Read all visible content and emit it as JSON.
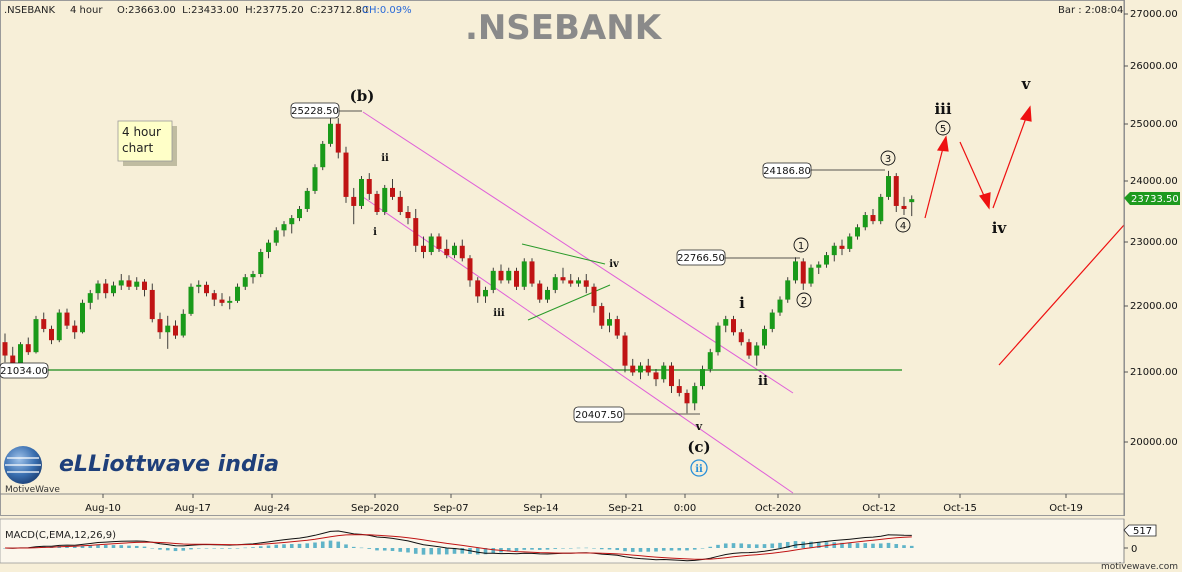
{
  "header": {
    "symbol": ".NSEBANK",
    "timeframe": "4 hour",
    "ohlc": "O:23663.00  L:23433.00  H:23775.20  C:23712.80",
    "change": "CH:0.09%",
    "bar_clock": "Bar : 2:08:04"
  },
  "title": ".NSEBANK",
  "note_line1": "4 hour",
  "note_line2": "chart",
  "brand": {
    "logo_text": "eLLiottwave india",
    "logo_caption": "MotiveWave",
    "watermark": "motivewave.com"
  },
  "colors": {
    "background": "#f7efd8",
    "up_candle": "#1a9a1a",
    "down_candle": "#c01414",
    "channel": "#e060d8",
    "triangle": "#2a9a2a",
    "support": "#1a8a1a",
    "projection": "#ee1111",
    "current_price_box": "#1e9a1e",
    "macd_histogram": "#5fb4c8",
    "macd_line": "#111111",
    "signal_line": "#c01414"
  },
  "chart_data": {
    "type": "candlestick",
    "y_axis": {
      "scale": "log",
      "range": [
        19400,
        27200
      ],
      "ticks": [
        "20000.00",
        "21000.00",
        "22000.00",
        "23000.00",
        "24000.00",
        "25000.00",
        "26000.00",
        "27000.00"
      ]
    },
    "x_axis": {
      "ticks": [
        "Aug-10",
        "Aug-17",
        "Aug-24",
        "Sep-2020",
        "Sep-07",
        "Sep-14",
        "Sep-21",
        "0:00",
        "Oct-2020",
        "Oct-12",
        "Oct-15",
        "Oct-19"
      ]
    },
    "grid": false,
    "price_labels": [
      "25228.50",
      "24186.80",
      "22766.50",
      "21034.00",
      "20407.50"
    ],
    "current_price": "23733.50",
    "candles": [
      {
        "o": 21450,
        "h": 21580,
        "l": 21150,
        "c": 21250
      },
      {
        "o": 21250,
        "h": 21380,
        "l": 21020,
        "c": 21120
      },
      {
        "o": 21120,
        "h": 21450,
        "l": 21080,
        "c": 21420
      },
      {
        "o": 21420,
        "h": 21520,
        "l": 21260,
        "c": 21300
      },
      {
        "o": 21300,
        "h": 21850,
        "l": 21280,
        "c": 21800
      },
      {
        "o": 21800,
        "h": 21900,
        "l": 21600,
        "c": 21650
      },
      {
        "o": 21650,
        "h": 21700,
        "l": 21420,
        "c": 21480
      },
      {
        "o": 21480,
        "h": 21950,
        "l": 21450,
        "c": 21900
      },
      {
        "o": 21900,
        "h": 21960,
        "l": 21650,
        "c": 21700
      },
      {
        "o": 21700,
        "h": 21780,
        "l": 21500,
        "c": 21600
      },
      {
        "o": 21600,
        "h": 22100,
        "l": 21580,
        "c": 22050
      },
      {
        "o": 22050,
        "h": 22250,
        "l": 21950,
        "c": 22200
      },
      {
        "o": 22200,
        "h": 22400,
        "l": 22100,
        "c": 22350
      },
      {
        "o": 22350,
        "h": 22420,
        "l": 22120,
        "c": 22200
      },
      {
        "o": 22200,
        "h": 22380,
        "l": 22150,
        "c": 22320
      },
      {
        "o": 22320,
        "h": 22500,
        "l": 22250,
        "c": 22400
      },
      {
        "o": 22400,
        "h": 22480,
        "l": 22250,
        "c": 22300
      },
      {
        "o": 22300,
        "h": 22450,
        "l": 22250,
        "c": 22380
      },
      {
        "o": 22380,
        "h": 22420,
        "l": 22150,
        "c": 22250
      },
      {
        "o": 22250,
        "h": 22350,
        "l": 21750,
        "c": 21800
      },
      {
        "o": 21800,
        "h": 21900,
        "l": 21500,
        "c": 21600
      },
      {
        "o": 21600,
        "h": 21850,
        "l": 21350,
        "c": 21700
      },
      {
        "o": 21700,
        "h": 21780,
        "l": 21500,
        "c": 21550
      },
      {
        "o": 21550,
        "h": 21950,
        "l": 21520,
        "c": 21880
      },
      {
        "o": 21880,
        "h": 22350,
        "l": 21850,
        "c": 22300
      },
      {
        "o": 22300,
        "h": 22400,
        "l": 22200,
        "c": 22330
      },
      {
        "o": 22330,
        "h": 22380,
        "l": 22150,
        "c": 22200
      },
      {
        "o": 22200,
        "h": 22250,
        "l": 22000,
        "c": 22100
      },
      {
        "o": 22100,
        "h": 22200,
        "l": 22000,
        "c": 22050
      },
      {
        "o": 22050,
        "h": 22150,
        "l": 21950,
        "c": 22080
      },
      {
        "o": 22080,
        "h": 22350,
        "l": 22050,
        "c": 22300
      },
      {
        "o": 22300,
        "h": 22500,
        "l": 22250,
        "c": 22450
      },
      {
        "o": 22450,
        "h": 22550,
        "l": 22350,
        "c": 22500
      },
      {
        "o": 22500,
        "h": 22900,
        "l": 22450,
        "c": 22850
      },
      {
        "o": 22850,
        "h": 23050,
        "l": 22750,
        "c": 23000
      },
      {
        "o": 23000,
        "h": 23250,
        "l": 22950,
        "c": 23200
      },
      {
        "o": 23200,
        "h": 23350,
        "l": 23100,
        "c": 23300
      },
      {
        "o": 23300,
        "h": 23450,
        "l": 23150,
        "c": 23400
      },
      {
        "o": 23400,
        "h": 23600,
        "l": 23350,
        "c": 23550
      },
      {
        "o": 23550,
        "h": 23900,
        "l": 23500,
        "c": 23850
      },
      {
        "o": 23850,
        "h": 24300,
        "l": 23800,
        "c": 24250
      },
      {
        "o": 24250,
        "h": 24700,
        "l": 24200,
        "c": 24650
      },
      {
        "o": 24650,
        "h": 25228.5,
        "l": 24600,
        "c": 25000
      },
      {
        "o": 25000,
        "h": 25100,
        "l": 24400,
        "c": 24500
      },
      {
        "o": 24500,
        "h": 24600,
        "l": 23650,
        "c": 23750
      },
      {
        "o": 23750,
        "h": 23900,
        "l": 23300,
        "c": 23600
      },
      {
        "o": 23600,
        "h": 24100,
        "l": 23550,
        "c": 24050
      },
      {
        "o": 24050,
        "h": 24150,
        "l": 23700,
        "c": 23800
      },
      {
        "o": 23800,
        "h": 23850,
        "l": 23450,
        "c": 23500
      },
      {
        "o": 23500,
        "h": 23950,
        "l": 23450,
        "c": 23900
      },
      {
        "o": 23900,
        "h": 24050,
        "l": 23700,
        "c": 23750
      },
      {
        "o": 23750,
        "h": 23850,
        "l": 23450,
        "c": 23500
      },
      {
        "o": 23500,
        "h": 23600,
        "l": 23300,
        "c": 23400
      },
      {
        "o": 23400,
        "h": 23550,
        "l": 22850,
        "c": 22950
      },
      {
        "o": 22950,
        "h": 23100,
        "l": 22750,
        "c": 22850
      },
      {
        "o": 22850,
        "h": 23150,
        "l": 22800,
        "c": 23100
      },
      {
        "o": 23100,
        "h": 23150,
        "l": 22850,
        "c": 22900
      },
      {
        "o": 22900,
        "h": 23050,
        "l": 22750,
        "c": 22800
      },
      {
        "o": 22800,
        "h": 23000,
        "l": 22750,
        "c": 22950
      },
      {
        "o": 22950,
        "h": 23050,
        "l": 22700,
        "c": 22750
      },
      {
        "o": 22750,
        "h": 22800,
        "l": 22300,
        "c": 22400
      },
      {
        "o": 22400,
        "h": 22450,
        "l": 22050,
        "c": 22150
      },
      {
        "o": 22150,
        "h": 22300,
        "l": 22050,
        "c": 22250
      },
      {
        "o": 22250,
        "h": 22600,
        "l": 22200,
        "c": 22550
      },
      {
        "o": 22550,
        "h": 22650,
        "l": 22350,
        "c": 22400
      },
      {
        "o": 22400,
        "h": 22600,
        "l": 22350,
        "c": 22550
      },
      {
        "o": 22550,
        "h": 22600,
        "l": 22250,
        "c": 22300
      },
      {
        "o": 22300,
        "h": 22750,
        "l": 22250,
        "c": 22700
      },
      {
        "o": 22700,
        "h": 22750,
        "l": 22300,
        "c": 22350
      },
      {
        "o": 22350,
        "h": 22400,
        "l": 22050,
        "c": 22100
      },
      {
        "o": 22100,
        "h": 22300,
        "l": 22050,
        "c": 22250
      },
      {
        "o": 22250,
        "h": 22500,
        "l": 22200,
        "c": 22450
      },
      {
        "o": 22450,
        "h": 22600,
        "l": 22350,
        "c": 22400
      },
      {
        "o": 22400,
        "h": 22500,
        "l": 22300,
        "c": 22350
      },
      {
        "o": 22350,
        "h": 22450,
        "l": 22300,
        "c": 22400
      },
      {
        "o": 22400,
        "h": 22500,
        "l": 22200,
        "c": 22300
      },
      {
        "o": 22300,
        "h": 22350,
        "l": 21900,
        "c": 22000
      },
      {
        "o": 22000,
        "h": 22050,
        "l": 21650,
        "c": 21700
      },
      {
        "o": 21700,
        "h": 21900,
        "l": 21600,
        "c": 21800
      },
      {
        "o": 21800,
        "h": 21850,
        "l": 21500,
        "c": 21550
      },
      {
        "o": 21550,
        "h": 21600,
        "l": 21000,
        "c": 21100
      },
      {
        "o": 21100,
        "h": 21200,
        "l": 20950,
        "c": 21000
      },
      {
        "o": 21000,
        "h": 21150,
        "l": 20900,
        "c": 21100
      },
      {
        "o": 21100,
        "h": 21200,
        "l": 20950,
        "c": 21000
      },
      {
        "o": 21000,
        "h": 21050,
        "l": 20800,
        "c": 20900
      },
      {
        "o": 20900,
        "h": 21150,
        "l": 20850,
        "c": 21100
      },
      {
        "o": 21100,
        "h": 21150,
        "l": 20700,
        "c": 20800
      },
      {
        "o": 20800,
        "h": 20900,
        "l": 20650,
        "c": 20700
      },
      {
        "o": 20700,
        "h": 20750,
        "l": 20407.5,
        "c": 20550
      },
      {
        "o": 20550,
        "h": 20850,
        "l": 20450,
        "c": 20800
      },
      {
        "o": 20800,
        "h": 21100,
        "l": 20750,
        "c": 21050
      },
      {
        "o": 21050,
        "h": 21350,
        "l": 21000,
        "c": 21300
      },
      {
        "o": 21300,
        "h": 21750,
        "l": 21250,
        "c": 21700
      },
      {
        "o": 21700,
        "h": 21850,
        "l": 21600,
        "c": 21800
      },
      {
        "o": 21800,
        "h": 21850,
        "l": 21550,
        "c": 21600
      },
      {
        "o": 21600,
        "h": 21650,
        "l": 21400,
        "c": 21450
      },
      {
        "o": 21450,
        "h": 21500,
        "l": 21200,
        "c": 21250
      },
      {
        "o": 21250,
        "h": 21450,
        "l": 21100,
        "c": 21400
      },
      {
        "o": 21400,
        "h": 21700,
        "l": 21350,
        "c": 21650
      },
      {
        "o": 21650,
        "h": 21950,
        "l": 21600,
        "c": 21900
      },
      {
        "o": 21900,
        "h": 22150,
        "l": 21850,
        "c": 22100
      },
      {
        "o": 22100,
        "h": 22450,
        "l": 22050,
        "c": 22400
      },
      {
        "o": 22400,
        "h": 22766.5,
        "l": 22350,
        "c": 22700
      },
      {
        "o": 22700,
        "h": 22750,
        "l": 22250,
        "c": 22350
      },
      {
        "o": 22350,
        "h": 22650,
        "l": 22300,
        "c": 22600
      },
      {
        "o": 22600,
        "h": 22700,
        "l": 22500,
        "c": 22650
      },
      {
        "o": 22650,
        "h": 22850,
        "l": 22600,
        "c": 22800
      },
      {
        "o": 22800,
        "h": 23000,
        "l": 22700,
        "c": 22950
      },
      {
        "o": 22950,
        "h": 23050,
        "l": 22800,
        "c": 22900
      },
      {
        "o": 22900,
        "h": 23150,
        "l": 22850,
        "c": 23100
      },
      {
        "o": 23100,
        "h": 23300,
        "l": 23050,
        "c": 23250
      },
      {
        "o": 23250,
        "h": 23500,
        "l": 23200,
        "c": 23450
      },
      {
        "o": 23450,
        "h": 23550,
        "l": 23300,
        "c": 23350
      },
      {
        "o": 23350,
        "h": 23800,
        "l": 23300,
        "c": 23750
      },
      {
        "o": 23750,
        "h": 24186.8,
        "l": 23700,
        "c": 24100
      },
      {
        "o": 24100,
        "h": 24150,
        "l": 23500,
        "c": 23600
      },
      {
        "o": 23600,
        "h": 23750,
        "l": 23450,
        "c": 23550
      },
      {
        "o": 23663,
        "h": 23775.2,
        "l": 23433,
        "c": 23712.8
      }
    ],
    "waves": [
      {
        "label": "(b)",
        "at": "25228.50 high"
      },
      {
        "label": "i"
      },
      {
        "label": "ii"
      },
      {
        "label": "iii"
      },
      {
        "label": "iv"
      },
      {
        "label": "v"
      },
      {
        "label": "(c)",
        "at": "20407.50 low"
      },
      {
        "label": "ii"
      },
      {
        "label": "i"
      },
      {
        "label": "ii"
      },
      {
        "label": "1"
      },
      {
        "label": "2"
      },
      {
        "label": "3"
      },
      {
        "label": "4"
      },
      {
        "label": "5"
      },
      {
        "label": "iii"
      },
      {
        "label": "iv"
      },
      {
        "label": "v"
      }
    ],
    "indicator": {
      "name": "MACD(C,EMA,12,26,9)",
      "ticks": [
        "0"
      ],
      "current_value": "517"
    }
  }
}
